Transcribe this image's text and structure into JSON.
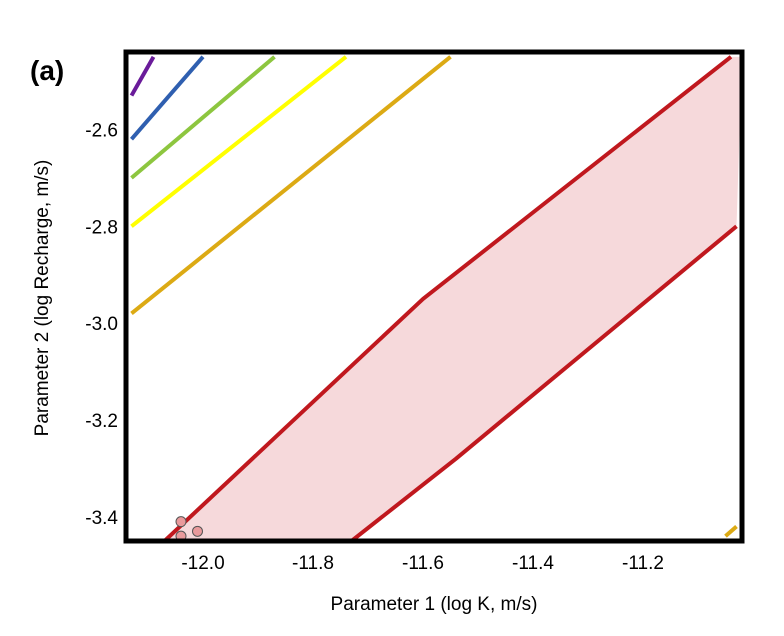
{
  "chart_data": {
    "type": "line",
    "panel_label": "(a)",
    "xlabel": "Parameter 1 (log K, m/s)",
    "ylabel": "Parameter 2 (log Recharge, m/s)",
    "xlim": [
      -12.14,
      -11.02
    ],
    "ylim": [
      -3.45,
      -2.44
    ],
    "xticks": [
      -12.0,
      -11.8,
      -11.6,
      -11.4,
      -11.2
    ],
    "xtick_labels": [
      "-12.0",
      "-11.8",
      "-11.6",
      "-11.4",
      "-11.2"
    ],
    "yticks": [
      -3.4,
      -3.2,
      -3.0,
      -2.8,
      -2.6
    ],
    "ytick_labels": [
      "-3.4",
      "-3.2",
      "-3.0",
      "-2.8",
      "-2.6"
    ],
    "grid": false,
    "region": {
      "fill": "#f6d9db",
      "upper_boundary": {
        "x": [
          -12.07,
          -11.6,
          -11.04
        ],
        "y": [
          -3.45,
          -2.95,
          -2.45
        ]
      },
      "lower_boundary": {
        "x": [
          -11.73,
          -11.54,
          -11.03
        ],
        "y": [
          -3.45,
          -3.28,
          -2.8
        ]
      }
    },
    "series": [
      {
        "color": "#6a1b9a",
        "x": [
          -12.13,
          -12.09
        ],
        "y": [
          -2.53,
          -2.45
        ]
      },
      {
        "color": "#2f5fb0",
        "x": [
          -12.13,
          -12.0
        ],
        "y": [
          -2.62,
          -2.45
        ]
      },
      {
        "color": "#8dc63f",
        "x": [
          -12.13,
          -11.87
        ],
        "y": [
          -2.7,
          -2.45
        ]
      },
      {
        "color": "#ffff00",
        "x": [
          -12.13,
          -11.74
        ],
        "y": [
          -2.8,
          -2.45
        ]
      },
      {
        "color": "#dcaa14",
        "x": [
          -12.13,
          -11.55
        ],
        "y": [
          -2.98,
          -2.45
        ]
      },
      {
        "color": "#dcaa14",
        "x": [
          -11.05,
          -11.03
        ],
        "y": [
          -3.44,
          -3.42
        ]
      },
      {
        "color": "#c0181e",
        "x": [
          -12.07,
          -11.6,
          -11.04
        ],
        "y": [
          -3.45,
          -2.95,
          -2.45
        ]
      },
      {
        "color": "#c0181e",
        "x": [
          -11.73,
          -11.54,
          -11.03
        ],
        "y": [
          -3.45,
          -3.28,
          -2.8
        ]
      }
    ],
    "points": {
      "color": "#e99a9c",
      "x": [
        -12.04,
        -12.01,
        -12.04
      ],
      "y": [
        -3.41,
        -3.43,
        -3.44
      ]
    }
  }
}
